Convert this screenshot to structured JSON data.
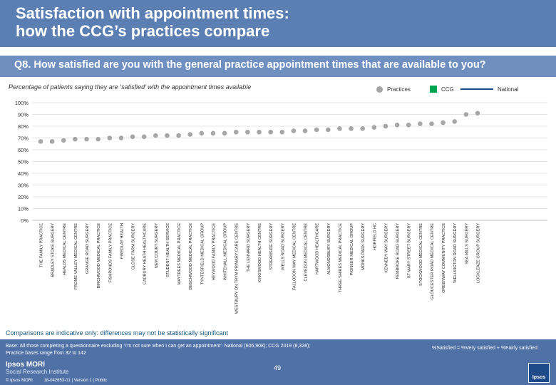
{
  "header": {
    "title_line1": "Satisfaction with appointment times:",
    "title_line2": "how the CCG’s practices compare"
  },
  "question": "Q8. How satisfied are you with the general practice appointment times that are available to you?",
  "subtitle": "Percentage of patients saying they are ‘satisfied’ with the appointment times available",
  "legend": {
    "practices": "Practices",
    "ccg": "CCG",
    "national": "National"
  },
  "colors": {
    "header": "#5b7fb3",
    "question_bar": "#6f8fc0",
    "practices": "#a6a6a6",
    "ccg": "#00a651",
    "national": "#1a4a8a",
    "footer": "#4f71a6"
  },
  "chart_data": {
    "type": "scatter",
    "title": "Percentage of patients saying they are ‘satisfied’ with the appointment times available",
    "ylim": [
      0,
      100
    ],
    "yticks": [
      "0%",
      "10%",
      "20%",
      "30%",
      "40%",
      "50%",
      "60%",
      "70%",
      "80%",
      "90%",
      "100%"
    ],
    "categories": [
      "THE FAMILY PRACTICE",
      "BRADLEY STOKE SURGERY",
      "HEALDS MEDICAL CENTRE",
      "FROME VALLEY MEDICAL CENTRE",
      "GRANGE ROAD SURGERY",
      "BIRCHWOOD MEDICAL PRACTICE",
      "FISHPONDS FAMILY PRACTICE",
      "FIREDLAY HEALTH",
      "CLOSE FARM SURGERY",
      "CADBURY HEATH HEALTHCARE",
      "NEW COURT SURGERY",
      "STUDENT HEALTH SERVICE",
      "MAYTREES MEDICAL PRACTICE",
      "BEECHWOOD MEDICAL PRACTICE",
      "TYNTESFIELD MEDICAL GROUP",
      "HEYWOOD FAMILY PRACTICE",
      "WHITEHALL MEDICAL GROUP",
      "WESTBURY ON TRYM PRIMARY CARE CENTRE",
      "THE LENNARD SURGERY",
      "KINGSWOOD HEALTH CENTRE",
      "STREAMSIDE SURGERY",
      "WELLS ROAD SURGERY",
      "FALLODON WAY MEDICAL CENTRE",
      "CLEVEDON MEDICAL CENTRE",
      "HARTWOOD HEALTHCARE",
      "ALMONDSBURY SURGERY",
      "THREE SHIRES MEDICAL PRACTICE",
      "PIONEER MEDICAL GROUP",
      "MONKS PARK SURGERY",
      "HORFIELD HC",
      "KENNEDY WAY SURGERY",
      "PEMBROKE ROAD SURGERY",
      "ST MARY STREET SURGERY",
      "STOCKWOOD MEDICAL CENTRE",
      "GLOUCESTER ROAD MEDICAL CENTRE",
      "GREENWAY COMMUNITY PRACTICE",
      "WELLINGTON ROAD SURGERY",
      "SEA MILLS SURGERY",
      "LOCKLEAZE GROUP SURGERY"
    ],
    "series": [
      {
        "name": "Practices",
        "values": [
          67,
          67,
          68,
          69,
          69,
          69,
          70,
          70,
          71,
          71,
          72,
          72,
          72,
          73,
          74,
          74,
          74,
          75,
          75,
          75,
          75,
          75,
          76,
          76,
          77,
          77,
          78,
          78,
          78,
          79,
          80,
          81,
          81,
          82,
          82,
          83,
          84,
          90,
          91
        ]
      }
    ]
  },
  "comparison_note": "Comparisons are indicative only: differences may not be statistically significant",
  "footer": {
    "base_line1": "Base: All those completing a questionnaire excluding ‘I’m not sure when I can get an appointment’: National (606,908); CCG 2019 (8,328);",
    "base_line2": "Practice bases range from 32 to 142",
    "satisfied_definition": "%Satisfied = %Very satisfied + %Fairly satisfied",
    "org_name": "Ipsos MORI",
    "org_sub": "Social Research Institute",
    "page_number": "49",
    "copyright": "© Ipsos MORI",
    "version": "18-042653-01 | Version 1 | Public",
    "badge": "Ipsos"
  }
}
